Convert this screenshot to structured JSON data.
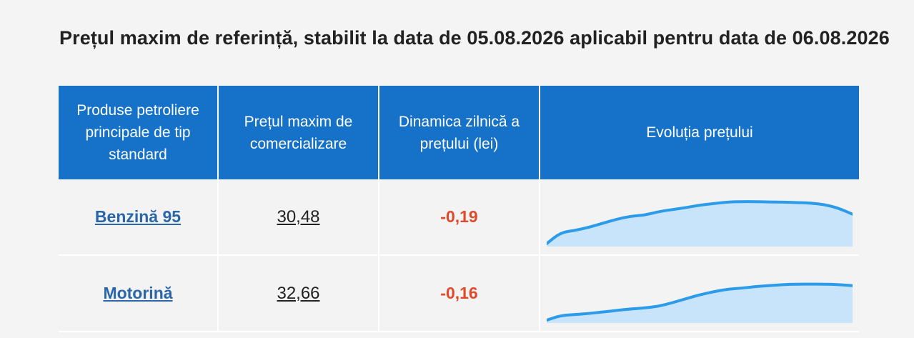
{
  "title": "Prețul maxim de referință, stabilit la data de 05.08.2026 aplicabil pentru data de 06.08.2026",
  "table": {
    "headers": [
      "Produse petroliere principale de tip standard",
      "Prețul maxim de comercializare",
      "Dinamica zilnică a prețului (lei)",
      "Evoluția prețului"
    ],
    "rows": [
      {
        "product": "Benzină 95",
        "price": "30,48",
        "delta": "-0,19",
        "trend": [
          0.0,
          0.22,
          0.26,
          0.32,
          0.4,
          0.48,
          0.54,
          0.56,
          0.63,
          0.67,
          0.71,
          0.76,
          0.79,
          0.82,
          0.83,
          0.83,
          0.82,
          0.82,
          0.81,
          0.8,
          0.77,
          0.7,
          0.58
        ]
      },
      {
        "product": "Motorină",
        "price": "32,66",
        "delta": "-0,16",
        "trend": [
          0.0,
          0.09,
          0.11,
          0.13,
          0.16,
          0.19,
          0.22,
          0.24,
          0.27,
          0.34,
          0.42,
          0.5,
          0.56,
          0.61,
          0.63,
          0.66,
          0.68,
          0.7,
          0.71,
          0.71,
          0.71,
          0.7,
          0.68
        ]
      }
    ]
  },
  "colors": {
    "header_bg": "#1672c9",
    "product_link": "#2a66a8",
    "delta_negative": "#e04a2a",
    "sparkline_stroke": "#2b9bea",
    "sparkline_fill": "#bfe1fb"
  }
}
